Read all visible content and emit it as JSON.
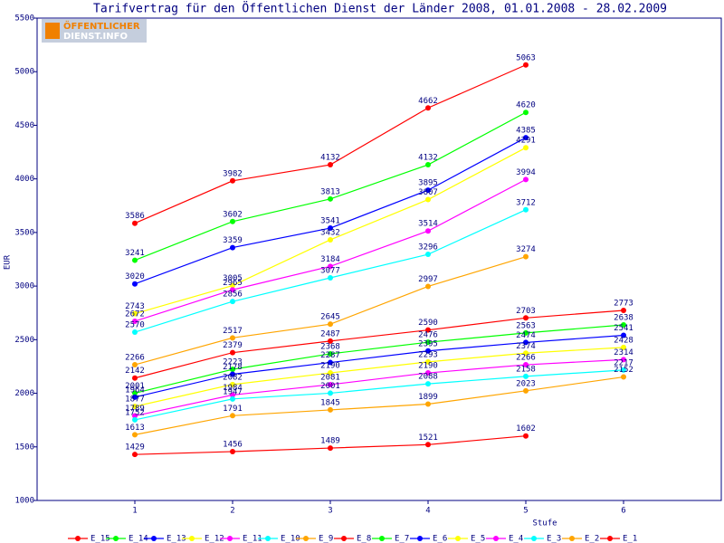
{
  "logo": [
    "ÖFFENTLICHER",
    "DIENST.INFO"
  ],
  "chart_data": {
    "type": "line",
    "title": "Tarifvertrag für den Öffentlichen Dienst der Länder 2008, 01.01.2008 - 28.02.2009",
    "x_label": "Stufe",
    "y_label": "EUR",
    "x": [
      1,
      2,
      3,
      4,
      5,
      6
    ],
    "xlim": [
      0,
      7
    ],
    "xticks": [
      1,
      2,
      3,
      4,
      5,
      6
    ],
    "ylim": [
      1000,
      5500
    ],
    "yticks": [
      1000,
      1500,
      2000,
      2500,
      3000,
      3500,
      4000,
      4500,
      5000,
      5500
    ],
    "grid": false,
    "legend": "bottom",
    "series": [
      {
        "name": "E_15",
        "color": "#ff0000",
        "values": [
          3586,
          3982,
          4132,
          4662,
          5063,
          null
        ]
      },
      {
        "name": "E_14",
        "color": "#00ff00",
        "values": [
          3241,
          3602,
          3813,
          4132,
          4620,
          null
        ]
      },
      {
        "name": "E_13",
        "color": "#0000ff",
        "values": [
          3020,
          3359,
          3541,
          3895,
          4385,
          null
        ]
      },
      {
        "name": "E_12",
        "color": "#ffff00",
        "values": [
          2743,
          3005,
          3432,
          3807,
          4291,
          null
        ]
      },
      {
        "name": "E_11",
        "color": "#ff00ff",
        "values": [
          2672,
          2965,
          3184,
          3514,
          3994,
          null
        ]
      },
      {
        "name": "E_10",
        "color": "#00ffff",
        "values": [
          2570,
          2856,
          3077,
          3296,
          3712,
          null
        ]
      },
      {
        "name": "E_9",
        "color": "#ffa500",
        "values": [
          2266,
          2517,
          2645,
          2997,
          3274,
          null
        ]
      },
      {
        "name": "E_8",
        "color": "#ff0000",
        "values": [
          2142,
          2379,
          2487,
          2590,
          2703,
          2773
        ]
      },
      {
        "name": "E_7",
        "color": "#00ff00",
        "values": [
          2001,
          2223,
          2368,
          2476,
          2563,
          2638
        ]
      },
      {
        "name": "E_6",
        "color": "#0000ff",
        "values": [
          1964,
          2178,
          2287,
          2395,
          2474,
          2541
        ]
      },
      {
        "name": "E_5",
        "color": "#ffff00",
        "values": [
          1877,
          2082,
          2190,
          2293,
          2374,
          2428
        ]
      },
      {
        "name": "E_4",
        "color": "#ff00ff",
        "values": [
          1789,
          1984,
          2081,
          2190,
          2266,
          2314
        ]
      },
      {
        "name": "E_3",
        "color": "#00ffff",
        "values": [
          1752,
          1947,
          2001,
          2088,
          2158,
          2217
        ]
      },
      {
        "name": "E_2",
        "color": "#ffa500",
        "values": [
          1613,
          1791,
          1845,
          1899,
          2023,
          2152
        ]
      },
      {
        "name": "E_1",
        "color": "#ff0000",
        "values": [
          1429,
          1456,
          1489,
          1521,
          1602,
          null
        ]
      }
    ]
  }
}
